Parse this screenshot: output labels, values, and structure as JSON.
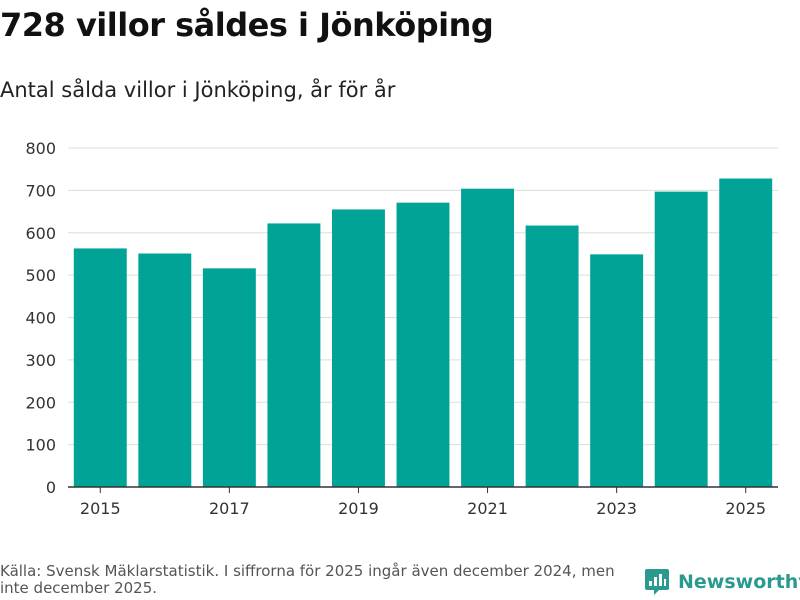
{
  "header": {
    "title": "728 villor såldes i Jönköping",
    "subtitle": "Antal sålda villor i Jönköping, år för år"
  },
  "footer": {
    "source": "Källa: Svensk Mäklarstatistik. I siffrorna för 2025 ingår även december 2024, men inte december 2025.",
    "brand": "Newsworthy"
  },
  "colors": {
    "bar": "#00a396",
    "grid": "#dddddd",
    "axis": "#333333",
    "brand": "#2b9a8e"
  },
  "chart_data": {
    "type": "bar",
    "title": "Antal sålda villor i Jönköping, år för år",
    "xlabel": "",
    "ylabel": "",
    "categories": [
      "2015",
      "2016",
      "2017",
      "2018",
      "2019",
      "2020",
      "2021",
      "2022",
      "2023",
      "2024",
      "2025"
    ],
    "values": [
      563,
      551,
      516,
      622,
      655,
      671,
      704,
      617,
      549,
      697,
      728
    ],
    "ylim": [
      0,
      800
    ],
    "yticks": [
      0,
      100,
      200,
      300,
      400,
      500,
      600,
      700,
      800
    ],
    "xtick_labels": [
      "2015",
      "2017",
      "2019",
      "2021",
      "2023",
      "2025"
    ],
    "grid": true,
    "legend": "none"
  }
}
